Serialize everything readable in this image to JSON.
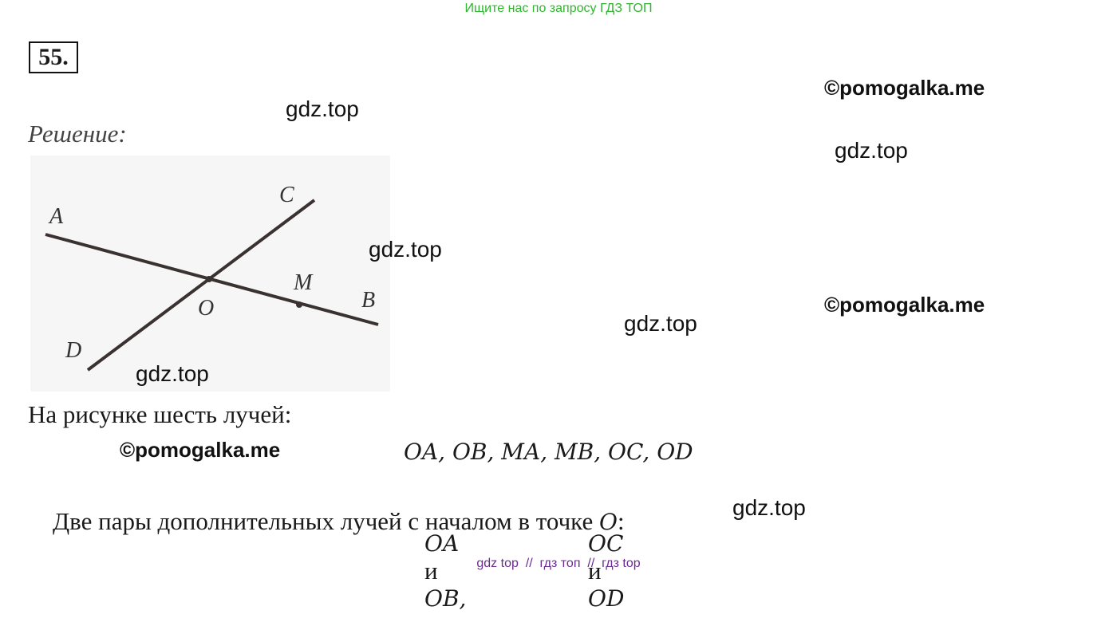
{
  "header": {
    "search_hint": "Ищите нас по запросу ГДЗ ТОП"
  },
  "problem": {
    "number": "55.",
    "solution_label": "Решение:"
  },
  "figure": {
    "labels": {
      "A": "A",
      "C": "C",
      "M": "M",
      "B": "B",
      "O": "O",
      "D": "D"
    }
  },
  "body": {
    "sentence1": "На рисунке шесть лучей:",
    "rays": "OA, OB, MA, MB, OC, OD",
    "sentence2": {
      "text": "Две пары дополнительных лучей с началом в точке",
      "point": "O",
      "end": ":"
    },
    "pairs": [
      {
        "first": "OA",
        "conj": "и",
        "second": "OB,"
      },
      {
        "first": "OC",
        "conj": "и",
        "second": "OD"
      }
    ]
  },
  "watermarks": [
    "gdz.top",
    "gdz.top",
    "gdz.top",
    "gdz.top",
    "gdz.top",
    "gdz.top",
    "©pomogalka.me",
    "©pomogalka.me",
    "©pomogalka.me"
  ],
  "footer": {
    "links": "gdz top  //  гдз топ  //  гдз top"
  }
}
